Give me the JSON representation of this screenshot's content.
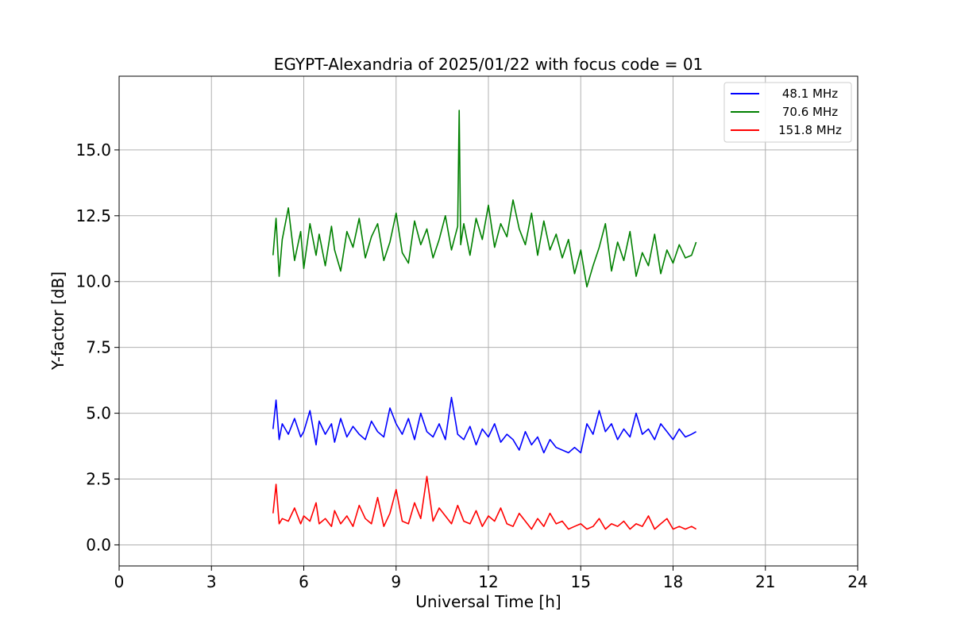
{
  "chart_data": {
    "type": "line",
    "title": "EGYPT-Alexandria of 2025/01/22 with focus code = 01",
    "xlabel": "Universal Time [h]",
    "ylabel": "Y-factor [dB]",
    "xlim": [
      0,
      24
    ],
    "ylim": [
      -0.8,
      17.8
    ],
    "xticks": [
      0,
      3,
      6,
      9,
      12,
      15,
      18,
      21,
      24
    ],
    "xtick_labels": [
      "0",
      "3",
      "6",
      "9",
      "12",
      "15",
      "18",
      "21",
      "24"
    ],
    "yticks": [
      0,
      2.5,
      5,
      7.5,
      10,
      12.5,
      15
    ],
    "ytick_labels": [
      "0.0",
      "2.5",
      "5.0",
      "7.5",
      "10.0",
      "12.5",
      "15.0"
    ],
    "grid": true,
    "legend_position": "top-right",
    "series": [
      {
        "name": "48.1 MHz",
        "color": "#0000ff",
        "x": [
          5.0,
          5.1,
          5.2,
          5.3,
          5.5,
          5.7,
          5.9,
          6.0,
          6.2,
          6.4,
          6.5,
          6.7,
          6.9,
          7.0,
          7.2,
          7.4,
          7.6,
          7.8,
          8.0,
          8.2,
          8.4,
          8.6,
          8.8,
          9.0,
          9.2,
          9.4,
          9.6,
          9.8,
          10.0,
          10.2,
          10.4,
          10.6,
          10.8,
          11.0,
          11.2,
          11.4,
          11.6,
          11.8,
          12.0,
          12.2,
          12.4,
          12.6,
          12.8,
          13.0,
          13.2,
          13.4,
          13.6,
          13.8,
          14.0,
          14.2,
          14.4,
          14.6,
          14.8,
          15.0,
          15.2,
          15.4,
          15.6,
          15.8,
          16.0,
          16.2,
          16.4,
          16.6,
          16.8,
          17.0,
          17.2,
          17.4,
          17.6,
          17.8,
          18.0,
          18.2,
          18.4,
          18.6,
          18.75
        ],
        "y": [
          4.4,
          5.5,
          4.0,
          4.6,
          4.2,
          4.8,
          4.1,
          4.3,
          5.1,
          3.8,
          4.7,
          4.2,
          4.6,
          3.9,
          4.8,
          4.1,
          4.5,
          4.2,
          4.0,
          4.7,
          4.3,
          4.1,
          5.2,
          4.6,
          4.2,
          4.8,
          4.0,
          5.0,
          4.3,
          4.1,
          4.6,
          4.0,
          5.6,
          4.2,
          4.0,
          4.5,
          3.8,
          4.4,
          4.1,
          4.6,
          3.9,
          4.2,
          4.0,
          3.6,
          4.3,
          3.8,
          4.1,
          3.5,
          4.0,
          3.7,
          3.6,
          3.5,
          3.7,
          3.5,
          4.6,
          4.2,
          5.1,
          4.3,
          4.6,
          4.0,
          4.4,
          4.1,
          5.0,
          4.2,
          4.4,
          4.0,
          4.6,
          4.3,
          4.0,
          4.4,
          4.1,
          4.2,
          4.3
        ]
      },
      {
        "name": "70.6 MHz",
        "color": "#008000",
        "x": [
          5.0,
          5.1,
          5.2,
          5.3,
          5.5,
          5.7,
          5.9,
          6.0,
          6.2,
          6.4,
          6.5,
          6.7,
          6.9,
          7.0,
          7.2,
          7.4,
          7.6,
          7.8,
          8.0,
          8.2,
          8.4,
          8.6,
          8.8,
          9.0,
          9.2,
          9.4,
          9.6,
          9.8,
          10.0,
          10.2,
          10.4,
          10.6,
          10.8,
          11.0,
          11.05,
          11.1,
          11.2,
          11.4,
          11.6,
          11.8,
          12.0,
          12.2,
          12.4,
          12.6,
          12.8,
          13.0,
          13.2,
          13.4,
          13.6,
          13.8,
          14.0,
          14.2,
          14.4,
          14.6,
          14.8,
          15.0,
          15.2,
          15.4,
          15.6,
          15.8,
          16.0,
          16.2,
          16.4,
          16.6,
          16.8,
          17.0,
          17.2,
          17.4,
          17.6,
          17.8,
          18.0,
          18.2,
          18.4,
          18.6,
          18.75
        ],
        "y": [
          11.0,
          12.4,
          10.2,
          11.6,
          12.8,
          10.8,
          11.9,
          10.5,
          12.2,
          11.0,
          11.8,
          10.6,
          12.1,
          11.2,
          10.4,
          11.9,
          11.3,
          12.4,
          10.9,
          11.7,
          12.2,
          10.8,
          11.5,
          12.6,
          11.1,
          10.7,
          12.3,
          11.4,
          12.0,
          10.9,
          11.6,
          12.5,
          11.2,
          12.1,
          16.5,
          11.4,
          12.2,
          11.0,
          12.4,
          11.6,
          12.9,
          11.3,
          12.2,
          11.7,
          13.1,
          12.0,
          11.4,
          12.6,
          11.0,
          12.3,
          11.2,
          11.8,
          10.9,
          11.6,
          10.3,
          11.2,
          9.8,
          10.6,
          11.3,
          12.2,
          10.4,
          11.5,
          10.8,
          11.9,
          10.2,
          11.1,
          10.6,
          11.8,
          10.3,
          11.2,
          10.7,
          11.4,
          10.9,
          11.0,
          11.5
        ]
      },
      {
        "name": "151.8 MHz",
        "color": "#ff0000",
        "x": [
          5.0,
          5.1,
          5.2,
          5.3,
          5.5,
          5.7,
          5.9,
          6.0,
          6.2,
          6.4,
          6.5,
          6.7,
          6.9,
          7.0,
          7.2,
          7.4,
          7.6,
          7.8,
          8.0,
          8.2,
          8.4,
          8.6,
          8.8,
          9.0,
          9.2,
          9.4,
          9.6,
          9.8,
          10.0,
          10.2,
          10.4,
          10.6,
          10.8,
          11.0,
          11.2,
          11.4,
          11.6,
          11.8,
          12.0,
          12.2,
          12.4,
          12.6,
          12.8,
          13.0,
          13.2,
          13.4,
          13.6,
          13.8,
          14.0,
          14.2,
          14.4,
          14.6,
          14.8,
          15.0,
          15.2,
          15.4,
          15.6,
          15.8,
          16.0,
          16.2,
          16.4,
          16.6,
          16.8,
          17.0,
          17.2,
          17.4,
          17.6,
          17.8,
          18.0,
          18.2,
          18.4,
          18.6,
          18.75
        ],
        "y": [
          1.2,
          2.3,
          0.8,
          1.0,
          0.9,
          1.4,
          0.8,
          1.1,
          0.9,
          1.6,
          0.8,
          1.0,
          0.7,
          1.3,
          0.8,
          1.1,
          0.7,
          1.5,
          1.0,
          0.8,
          1.8,
          0.7,
          1.2,
          2.1,
          0.9,
          0.8,
          1.6,
          1.0,
          2.6,
          0.9,
          1.4,
          1.1,
          0.8,
          1.5,
          0.9,
          0.8,
          1.3,
          0.7,
          1.1,
          0.9,
          1.4,
          0.8,
          0.7,
          1.2,
          0.9,
          0.6,
          1.0,
          0.7,
          1.2,
          0.8,
          0.9,
          0.6,
          0.7,
          0.8,
          0.6,
          0.7,
          1.0,
          0.6,
          0.8,
          0.7,
          0.9,
          0.6,
          0.8,
          0.7,
          1.1,
          0.6,
          0.8,
          1.0,
          0.6,
          0.7,
          0.6,
          0.7,
          0.6
        ]
      }
    ]
  }
}
